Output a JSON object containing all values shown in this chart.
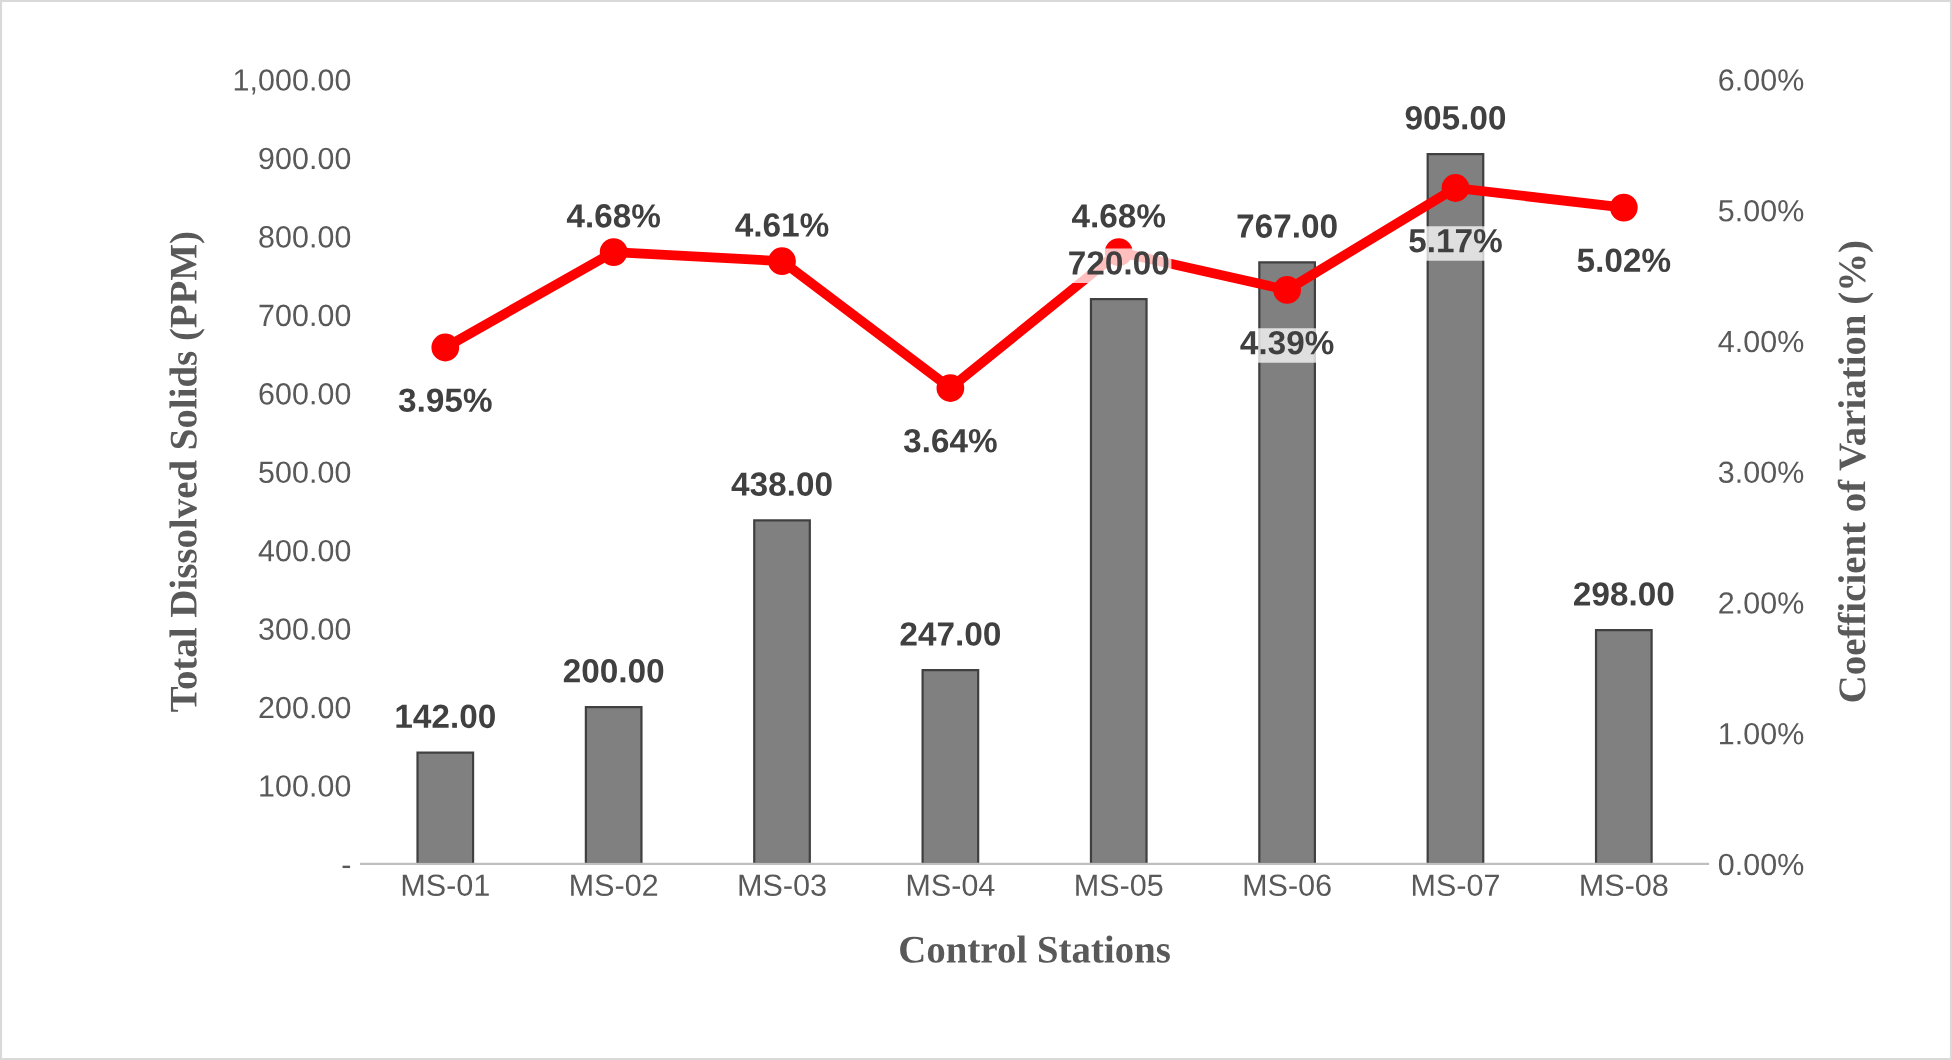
{
  "chart_data": {
    "type": "bar",
    "xlabel": "Control Stations",
    "ylabel": "Total Dissolved Solids (PPM)",
    "y2label": "Coefficient of Variation (%)",
    "categories": [
      "MS-01",
      "MS-02",
      "MS-03",
      "MS-04",
      "MS-05",
      "MS-06",
      "MS-07",
      "MS-08"
    ],
    "series": [
      {
        "color": "#808080",
        "values": [
          142,
          200,
          438,
          247,
          720,
          767,
          905,
          298
        ],
        "value_labels": [
          "142.00",
          "200.00",
          "438.00",
          "247.00",
          "720.00",
          "767.00",
          "905.00",
          "298.00"
        ]
      },
      {
        "type": "line",
        "axis": "y2",
        "color": "#ff0000",
        "marker": "circle",
        "line_style": "solid",
        "values": [
          3.95,
          4.68,
          4.61,
          3.64,
          4.68,
          4.39,
          5.17,
          5.02
        ],
        "value_labels": [
          "3.95%",
          "4.68%",
          "4.61%",
          "3.64%",
          "4.68%",
          "4.39%",
          "5.17%",
          "5.02%"
        ]
      }
    ],
    "ylim": [
      0,
      1000
    ],
    "yticks": [
      {
        "value": 0,
        "label": "-"
      },
      {
        "value": 100,
        "label": "100.00"
      },
      {
        "value": 200,
        "label": "200.00"
      },
      {
        "value": 300,
        "label": "300.00"
      },
      {
        "value": 400,
        "label": "400.00"
      },
      {
        "value": 500,
        "label": "500.00"
      },
      {
        "value": 600,
        "label": "600.00"
      },
      {
        "value": 700,
        "label": "700.00"
      },
      {
        "value": 800,
        "label": "800.00"
      },
      {
        "value": 900,
        "label": "900.00"
      },
      {
        "value": 1000,
        "label": "1,000.00"
      }
    ],
    "y2lim": [
      0,
      6
    ],
    "y2ticks": [
      {
        "value": 0,
        "label": "0.00%"
      },
      {
        "value": 1,
        "label": "1.00%"
      },
      {
        "value": 2,
        "label": "2.00%"
      },
      {
        "value": 3,
        "label": "3.00%"
      },
      {
        "value": 4,
        "label": "4.00%"
      },
      {
        "value": 5,
        "label": "5.00%"
      },
      {
        "value": 6,
        "label": "6.00%"
      }
    ],
    "grid": false
  }
}
